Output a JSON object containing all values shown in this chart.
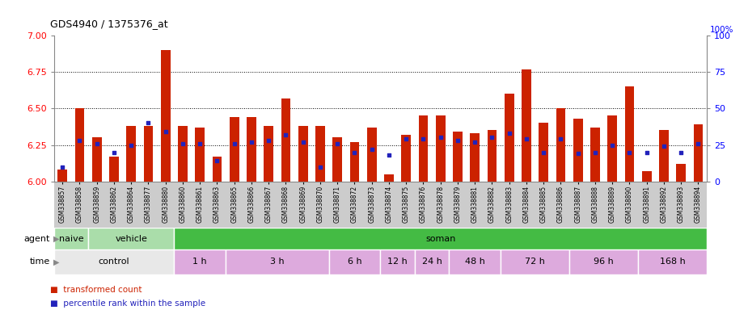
{
  "title": "GDS4940 / 1375376_at",
  "samples": [
    "GSM338857",
    "GSM338858",
    "GSM338859",
    "GSM338862",
    "GSM338864",
    "GSM338877",
    "GSM338880",
    "GSM338860",
    "GSM338861",
    "GSM338863",
    "GSM338865",
    "GSM338866",
    "GSM338867",
    "GSM338868",
    "GSM338869",
    "GSM338870",
    "GSM338871",
    "GSM338872",
    "GSM338873",
    "GSM338874",
    "GSM338875",
    "GSM338876",
    "GSM338878",
    "GSM338879",
    "GSM338881",
    "GSM338882",
    "GSM338883",
    "GSM338884",
    "GSM338885",
    "GSM338886",
    "GSM338887",
    "GSM338888",
    "GSM338889",
    "GSM338890",
    "GSM338891",
    "GSM338892",
    "GSM338893",
    "GSM338894"
  ],
  "transformed_count": [
    6.08,
    6.5,
    6.3,
    6.17,
    6.38,
    6.38,
    6.9,
    6.38,
    6.37,
    6.17,
    6.44,
    6.44,
    6.38,
    6.57,
    6.38,
    6.38,
    6.3,
    6.27,
    6.37,
    6.05,
    6.32,
    6.45,
    6.45,
    6.34,
    6.33,
    6.35,
    6.6,
    6.77,
    6.4,
    6.5,
    6.43,
    6.37,
    6.45,
    6.65,
    6.07,
    6.35,
    6.12,
    6.39
  ],
  "percentile_rank": [
    10,
    28,
    26,
    20,
    25,
    40,
    34,
    26,
    26,
    14,
    26,
    27,
    28,
    32,
    27,
    10,
    26,
    20,
    22,
    18,
    29,
    29,
    30,
    28,
    27,
    30,
    33,
    29,
    20,
    29,
    19,
    20,
    25,
    20,
    20,
    24,
    20,
    26
  ],
  "ymin": 6.0,
  "ymax": 7.0,
  "yticks_left": [
    6.0,
    6.25,
    6.5,
    6.75,
    7.0
  ],
  "yticks_right": [
    0,
    25,
    50,
    75,
    100
  ],
  "bar_color": "#CC2200",
  "dot_color": "#2222BB",
  "agent_groups": [
    {
      "label": "naive",
      "start": 0,
      "end": 2,
      "color": "#AADDAA"
    },
    {
      "label": "vehicle",
      "start": 2,
      "end": 7,
      "color": "#AADDAA"
    },
    {
      "label": "soman",
      "start": 7,
      "end": 38,
      "color": "#44BB44"
    }
  ],
  "time_groups": [
    {
      "label": "control",
      "start": 0,
      "end": 7,
      "color": "#E8E8E8"
    },
    {
      "label": "1 h",
      "start": 7,
      "end": 10,
      "color": "#DDAADD"
    },
    {
      "label": "3 h",
      "start": 10,
      "end": 16,
      "color": "#DDAADD"
    },
    {
      "label": "6 h",
      "start": 16,
      "end": 19,
      "color": "#DDAADD"
    },
    {
      "label": "12 h",
      "start": 19,
      "end": 21,
      "color": "#DDAADD"
    },
    {
      "label": "24 h",
      "start": 21,
      "end": 23,
      "color": "#DDAADD"
    },
    {
      "label": "48 h",
      "start": 23,
      "end": 26,
      "color": "#DDAADD"
    },
    {
      "label": "72 h",
      "start": 26,
      "end": 30,
      "color": "#DDAADD"
    },
    {
      "label": "96 h",
      "start": 30,
      "end": 34,
      "color": "#DDAADD"
    },
    {
      "label": "168 h",
      "start": 34,
      "end": 38,
      "color": "#DDAADD"
    }
  ],
  "legend_bar_label": "transformed count",
  "legend_dot_label": "percentile rank within the sample",
  "xlabel_bg_color": "#CCCCCC"
}
